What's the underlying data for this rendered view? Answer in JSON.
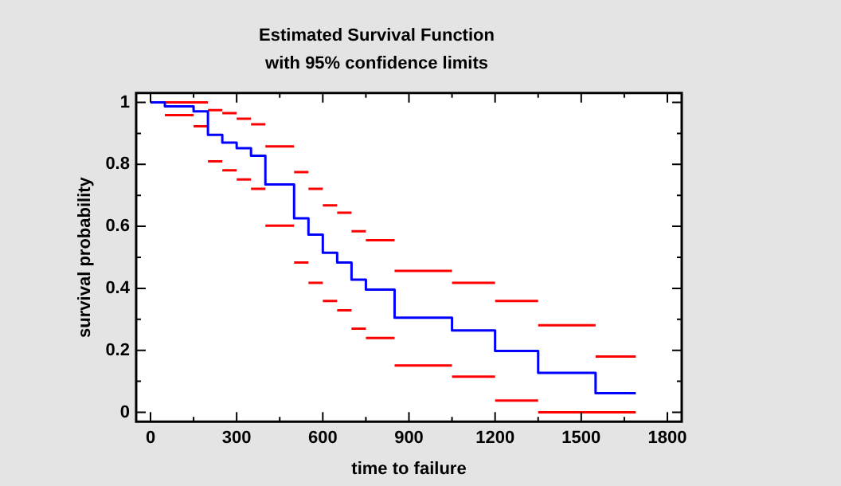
{
  "chart_data": {
    "type": "step",
    "title": "Estimated Survival Function",
    "subtitle": "with 95% confidence limits",
    "xlabel": "time to failure",
    "ylabel": "survival probability",
    "xlim": [
      -50,
      1850
    ],
    "xticks": [
      0,
      300,
      600,
      900,
      1200,
      1500,
      1800
    ],
    "ylim": [
      -0.03,
      1.03
    ],
    "yticks": [
      0,
      0.2,
      0.4,
      0.6,
      0.8,
      1
    ],
    "grid": false,
    "legend": false,
    "marker": "none",
    "line_style": "solid",
    "series": [
      {
        "color": "#0000ff",
        "x": [
          0,
          50,
          150,
          200,
          250,
          300,
          350,
          400,
          500,
          550,
          600,
          650,
          700,
          750,
          850,
          1050,
          1200,
          1350,
          1550,
          1690
        ],
        "values": [
          1,
          0.987,
          0.971,
          0.895,
          0.87,
          0.852,
          0.828,
          0.735,
          0.626,
          0.573,
          0.515,
          0.483,
          0.428,
          0.396,
          0.305,
          0.264,
          0.198,
          0.127,
          0.062,
          0.062
        ]
      },
      {
        "type": "line",
        "color": "#ff0000",
        "x": [
          50,
          150,
          null,
          150,
          200,
          null,
          200,
          250,
          null,
          250,
          300,
          null,
          300,
          350,
          null,
          350,
          400,
          null,
          400,
          500,
          null,
          500,
          550,
          null,
          550,
          600,
          null,
          600,
          650,
          null,
          650,
          700,
          null,
          700,
          750,
          null,
          750,
          850,
          null,
          850,
          1050,
          null,
          1050,
          1200,
          null,
          1200,
          1350,
          null,
          1350,
          1550,
          null,
          1550,
          1690
        ],
        "values": [
          1,
          1,
          null,
          1,
          1,
          null,
          0.975,
          0.975,
          null,
          0.965,
          0.965,
          null,
          0.947,
          0.947,
          null,
          0.929,
          0.929,
          null,
          0.858,
          0.858,
          null,
          0.775,
          0.775,
          null,
          0.721,
          0.721,
          null,
          0.668,
          0.668,
          null,
          0.644,
          0.644,
          null,
          0.584,
          0.584,
          null,
          0.555,
          0.555,
          null,
          0.456,
          0.456,
          null,
          0.418,
          0.418,
          null,
          0.359,
          0.359,
          null,
          0.281,
          0.281,
          null,
          0.18,
          0.18
        ]
      },
      {
        "type": "line",
        "color": "#ff0000",
        "x": [
          50,
          150,
          null,
          150,
          200,
          null,
          200,
          250,
          null,
          250,
          300,
          null,
          300,
          350,
          null,
          350,
          400,
          null,
          400,
          500,
          null,
          500,
          550,
          null,
          550,
          600,
          null,
          600,
          650,
          null,
          650,
          700,
          null,
          700,
          750,
          null,
          750,
          850,
          null,
          850,
          1050,
          null,
          1050,
          1200,
          null,
          1200,
          1350,
          null,
          1350,
          1550,
          null,
          1550,
          1690
        ],
        "values": [
          0.959,
          0.959,
          null,
          0.923,
          0.923,
          null,
          0.81,
          0.81,
          null,
          0.781,
          0.781,
          null,
          0.751,
          0.751,
          null,
          0.721,
          0.721,
          null,
          0.602,
          0.602,
          null,
          0.483,
          0.483,
          null,
          0.418,
          0.418,
          null,
          0.359,
          0.359,
          null,
          0.329,
          0.329,
          null,
          0.27,
          0.27,
          null,
          0.24,
          0.24,
          null,
          0.151,
          0.151,
          null,
          0.115,
          0.115,
          null,
          0.038,
          0.038,
          null,
          0,
          0,
          null,
          0,
          0
        ]
      }
    ]
  }
}
